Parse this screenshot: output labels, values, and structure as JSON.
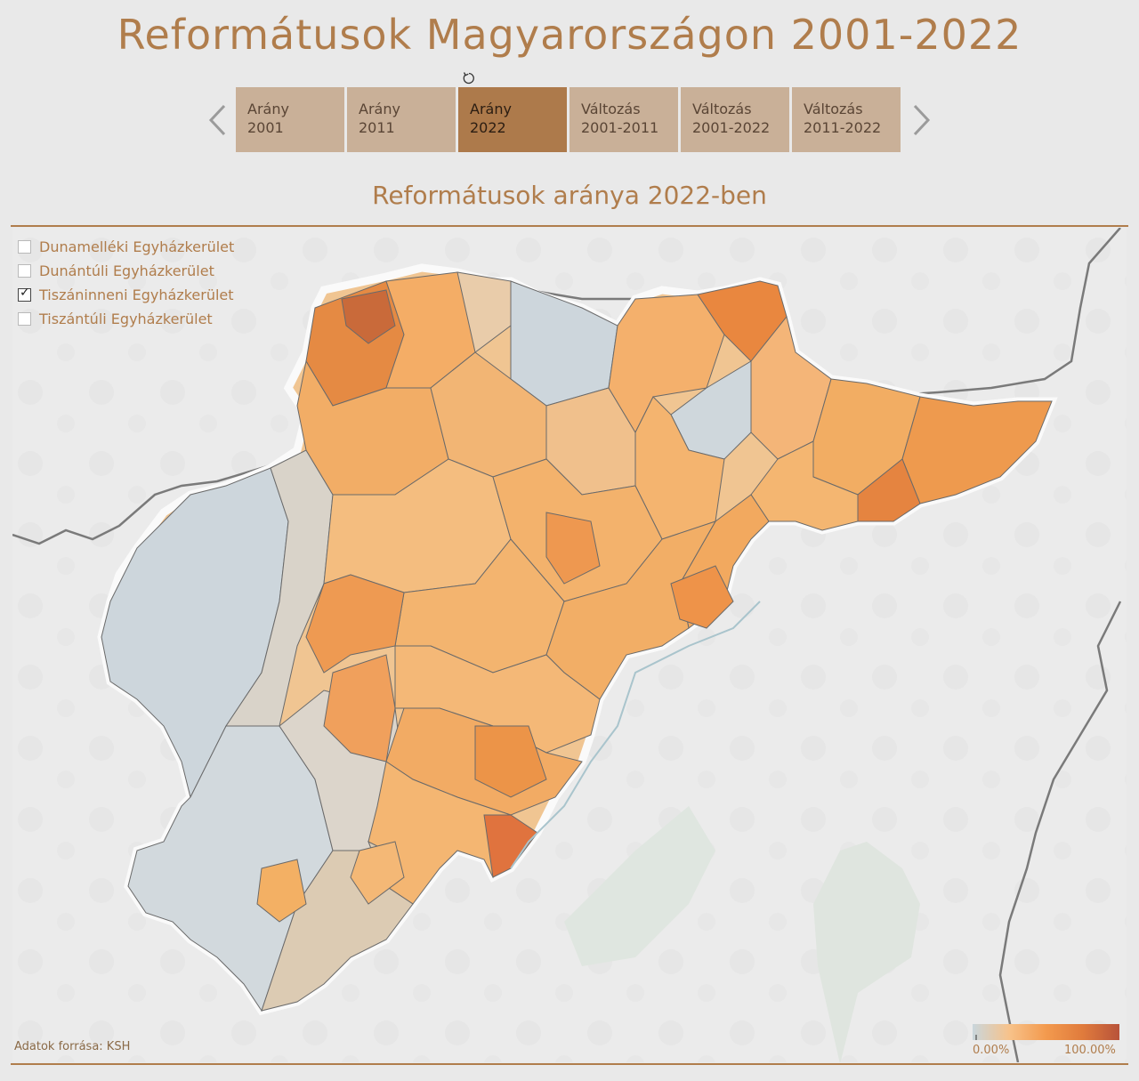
{
  "title": "Reformátusok Magyarországon 2001-2022",
  "tabs": [
    {
      "line1": "Arány",
      "line2": "2001",
      "active": false
    },
    {
      "line1": "Arány",
      "line2": "2011",
      "active": false
    },
    {
      "line1": "Arány",
      "line2": "2022",
      "active": true
    },
    {
      "line1": "Változás",
      "line2": "2001-2011",
      "active": false
    },
    {
      "line1": "Változás",
      "line2": "2001-2022",
      "active": false
    },
    {
      "line1": "Változás",
      "line2": "2011-2022",
      "active": false
    }
  ],
  "map_title": "Reformátusok aránya 2022-ben",
  "filters": [
    {
      "label": "Dunamelléki Egyházkerület",
      "checked": false
    },
    {
      "label": "Dunántúli Egyházkerület",
      "checked": false
    },
    {
      "label": "Tiszáninneni Egyházkerület",
      "checked": true
    },
    {
      "label": "Tiszántúli Egyházkerület",
      "checked": false
    }
  ],
  "source": "Adatok forrása: KSH",
  "scale": {
    "min_label": "0.00%",
    "max_label": "100.00%",
    "colors": [
      "#c9d6dc",
      "#f7c28a",
      "#f39a4e",
      "#e07b3c",
      "#b8533a"
    ]
  },
  "icons": {
    "reset": "reset-icon",
    "prev": "chevron-left-icon",
    "next": "chevron-right-icon"
  }
}
